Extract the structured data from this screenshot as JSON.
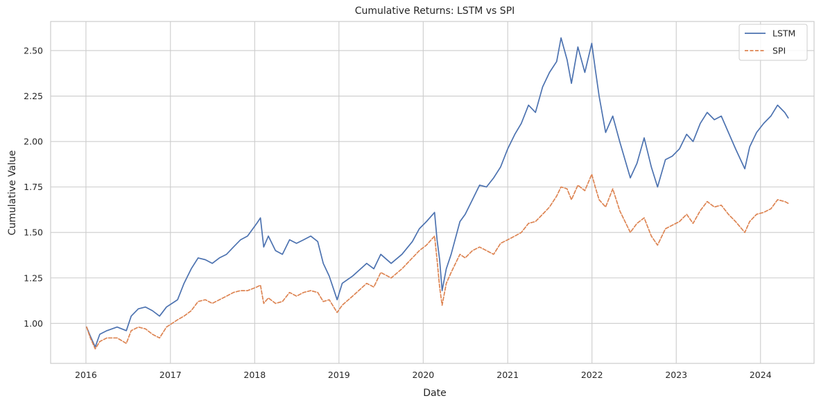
{
  "chart_data": {
    "type": "line",
    "title": "Cumulative Returns: LSTM vs SPI",
    "xlabel": "Date",
    "ylabel": "Cumulative Value",
    "x_ticks": [
      "2016",
      "2017",
      "2018",
      "2019",
      "2020",
      "2021",
      "2022",
      "2023",
      "2024"
    ],
    "y_ticks": [
      "1.00",
      "1.25",
      "1.50",
      "1.75",
      "2.00",
      "2.25",
      "2.50"
    ],
    "xlim": [
      "2015-08-01",
      "2024-08-20"
    ],
    "ylim": [
      0.78,
      2.66
    ],
    "grid": true,
    "legend_position": "top-right",
    "series": [
      {
        "name": "LSTM",
        "color": "#4c72b0",
        "style": "solid",
        "points": [
          [
            "2016-01-04",
            0.98
          ],
          [
            "2016-01-20",
            0.93
          ],
          [
            "2016-02-10",
            0.87
          ],
          [
            "2016-03-01",
            0.94
          ],
          [
            "2016-04-01",
            0.96
          ],
          [
            "2016-05-15",
            0.98
          ],
          [
            "2016-06-24",
            0.96
          ],
          [
            "2016-07-15",
            1.04
          ],
          [
            "2016-08-15",
            1.08
          ],
          [
            "2016-09-15",
            1.09
          ],
          [
            "2016-10-15",
            1.07
          ],
          [
            "2016-11-15",
            1.04
          ],
          [
            "2016-12-15",
            1.09
          ],
          [
            "2017-02-01",
            1.13
          ],
          [
            "2017-03-01",
            1.22
          ],
          [
            "2017-04-01",
            1.3
          ],
          [
            "2017-05-01",
            1.36
          ],
          [
            "2017-06-01",
            1.35
          ],
          [
            "2017-07-01",
            1.33
          ],
          [
            "2017-08-01",
            1.36
          ],
          [
            "2017-09-01",
            1.38
          ],
          [
            "2017-10-01",
            1.42
          ],
          [
            "2017-11-01",
            1.46
          ],
          [
            "2017-12-01",
            1.48
          ],
          [
            "2018-01-10",
            1.55
          ],
          [
            "2018-01-26",
            1.58
          ],
          [
            "2018-02-09",
            1.42
          ],
          [
            "2018-03-01",
            1.48
          ],
          [
            "2018-04-01",
            1.4
          ],
          [
            "2018-05-01",
            1.38
          ],
          [
            "2018-06-01",
            1.46
          ],
          [
            "2018-07-01",
            1.44
          ],
          [
            "2018-08-01",
            1.46
          ],
          [
            "2018-09-01",
            1.48
          ],
          [
            "2018-10-01",
            1.45
          ],
          [
            "2018-10-25",
            1.33
          ],
          [
            "2018-11-20",
            1.26
          ],
          [
            "2018-12-24",
            1.13
          ],
          [
            "2019-01-15",
            1.22
          ],
          [
            "2019-03-01",
            1.26
          ],
          [
            "2019-05-01",
            1.33
          ],
          [
            "2019-06-01",
            1.3
          ],
          [
            "2019-07-01",
            1.38
          ],
          [
            "2019-08-15",
            1.33
          ],
          [
            "2019-10-01",
            1.38
          ],
          [
            "2019-11-15",
            1.45
          ],
          [
            "2019-12-15",
            1.52
          ],
          [
            "2020-01-15",
            1.56
          ],
          [
            "2020-02-19",
            1.61
          ],
          [
            "2020-03-01",
            1.46
          ],
          [
            "2020-03-12",
            1.35
          ],
          [
            "2020-03-23",
            1.18
          ],
          [
            "2020-04-10",
            1.3
          ],
          [
            "2020-05-01",
            1.38
          ],
          [
            "2020-06-08",
            1.56
          ],
          [
            "2020-07-01",
            1.6
          ],
          [
            "2020-08-01",
            1.68
          ],
          [
            "2020-09-01",
            1.76
          ],
          [
            "2020-10-01",
            1.75
          ],
          [
            "2020-11-01",
            1.8
          ],
          [
            "2020-12-01",
            1.86
          ],
          [
            "2021-01-01",
            1.96
          ],
          [
            "2021-02-01",
            2.04
          ],
          [
            "2021-03-01",
            2.1
          ],
          [
            "2021-04-01",
            2.2
          ],
          [
            "2021-05-01",
            2.16
          ],
          [
            "2021-06-01",
            2.3
          ],
          [
            "2021-07-01",
            2.38
          ],
          [
            "2021-08-01",
            2.44
          ],
          [
            "2021-08-20",
            2.57
          ],
          [
            "2021-09-15",
            2.45
          ],
          [
            "2021-10-04",
            2.32
          ],
          [
            "2021-11-01",
            2.52
          ],
          [
            "2021-12-01",
            2.38
          ],
          [
            "2021-12-31",
            2.54
          ],
          [
            "2022-01-15",
            2.4
          ],
          [
            "2022-02-01",
            2.25
          ],
          [
            "2022-03-01",
            2.05
          ],
          [
            "2022-04-01",
            2.14
          ],
          [
            "2022-05-01",
            2.0
          ],
          [
            "2022-06-16",
            1.8
          ],
          [
            "2022-07-15",
            1.88
          ],
          [
            "2022-08-15",
            2.02
          ],
          [
            "2022-09-15",
            1.86
          ],
          [
            "2022-10-12",
            1.75
          ],
          [
            "2022-11-15",
            1.9
          ],
          [
            "2022-12-15",
            1.92
          ],
          [
            "2023-01-15",
            1.96
          ],
          [
            "2023-02-15",
            2.04
          ],
          [
            "2023-03-15",
            2.0
          ],
          [
            "2023-04-15",
            2.1
          ],
          [
            "2023-05-15",
            2.16
          ],
          [
            "2023-06-15",
            2.12
          ],
          [
            "2023-07-15",
            2.14
          ],
          [
            "2023-08-15",
            2.05
          ],
          [
            "2023-09-15",
            1.96
          ],
          [
            "2023-10-25",
            1.85
          ],
          [
            "2023-11-15",
            1.97
          ],
          [
            "2023-12-15",
            2.05
          ],
          [
            "2024-01-15",
            2.1
          ],
          [
            "2024-02-15",
            2.14
          ],
          [
            "2024-03-15",
            2.2
          ],
          [
            "2024-04-15",
            2.16
          ],
          [
            "2024-04-30",
            2.13
          ]
        ]
      },
      {
        "name": "SPI",
        "color": "#dd8452",
        "style": "dashed",
        "points": [
          [
            "2016-01-04",
            0.98
          ],
          [
            "2016-01-20",
            0.92
          ],
          [
            "2016-02-10",
            0.86
          ],
          [
            "2016-03-01",
            0.9
          ],
          [
            "2016-04-01",
            0.92
          ],
          [
            "2016-05-15",
            0.92
          ],
          [
            "2016-06-24",
            0.89
          ],
          [
            "2016-07-15",
            0.96
          ],
          [
            "2016-08-15",
            0.98
          ],
          [
            "2016-09-15",
            0.97
          ],
          [
            "2016-10-15",
            0.94
          ],
          [
            "2016-11-15",
            0.92
          ],
          [
            "2016-12-15",
            0.98
          ],
          [
            "2017-02-01",
            1.02
          ],
          [
            "2017-03-01",
            1.04
          ],
          [
            "2017-04-01",
            1.07
          ],
          [
            "2017-05-01",
            1.12
          ],
          [
            "2017-06-01",
            1.13
          ],
          [
            "2017-07-01",
            1.11
          ],
          [
            "2017-08-01",
            1.13
          ],
          [
            "2017-09-01",
            1.15
          ],
          [
            "2017-10-01",
            1.17
          ],
          [
            "2017-11-01",
            1.18
          ],
          [
            "2017-12-01",
            1.18
          ],
          [
            "2018-01-10",
            1.2
          ],
          [
            "2018-01-26",
            1.21
          ],
          [
            "2018-02-09",
            1.11
          ],
          [
            "2018-03-01",
            1.14
          ],
          [
            "2018-04-01",
            1.11
          ],
          [
            "2018-05-01",
            1.12
          ],
          [
            "2018-06-01",
            1.17
          ],
          [
            "2018-07-01",
            1.15
          ],
          [
            "2018-08-01",
            1.17
          ],
          [
            "2018-09-01",
            1.18
          ],
          [
            "2018-10-01",
            1.17
          ],
          [
            "2018-10-25",
            1.12
          ],
          [
            "2018-11-20",
            1.13
          ],
          [
            "2018-12-24",
            1.06
          ],
          [
            "2019-01-15",
            1.1
          ],
          [
            "2019-03-01",
            1.15
          ],
          [
            "2019-05-01",
            1.22
          ],
          [
            "2019-06-01",
            1.2
          ],
          [
            "2019-07-01",
            1.28
          ],
          [
            "2019-08-15",
            1.25
          ],
          [
            "2019-10-01",
            1.3
          ],
          [
            "2019-11-15",
            1.36
          ],
          [
            "2019-12-15",
            1.4
          ],
          [
            "2020-01-15",
            1.43
          ],
          [
            "2020-02-19",
            1.48
          ],
          [
            "2020-03-01",
            1.35
          ],
          [
            "2020-03-12",
            1.2
          ],
          [
            "2020-03-23",
            1.1
          ],
          [
            "2020-04-10",
            1.22
          ],
          [
            "2020-05-01",
            1.28
          ],
          [
            "2020-06-08",
            1.38
          ],
          [
            "2020-07-01",
            1.36
          ],
          [
            "2020-08-01",
            1.4
          ],
          [
            "2020-09-01",
            1.42
          ],
          [
            "2020-10-01",
            1.4
          ],
          [
            "2020-11-01",
            1.38
          ],
          [
            "2020-12-01",
            1.44
          ],
          [
            "2021-01-01",
            1.46
          ],
          [
            "2021-02-01",
            1.48
          ],
          [
            "2021-03-01",
            1.5
          ],
          [
            "2021-04-01",
            1.55
          ],
          [
            "2021-05-01",
            1.56
          ],
          [
            "2021-06-01",
            1.6
          ],
          [
            "2021-07-01",
            1.64
          ],
          [
            "2021-08-01",
            1.7
          ],
          [
            "2021-08-20",
            1.75
          ],
          [
            "2021-09-15",
            1.74
          ],
          [
            "2021-10-04",
            1.68
          ],
          [
            "2021-11-01",
            1.76
          ],
          [
            "2021-12-01",
            1.73
          ],
          [
            "2021-12-31",
            1.82
          ],
          [
            "2022-01-15",
            1.75
          ],
          [
            "2022-02-01",
            1.68
          ],
          [
            "2022-03-01",
            1.64
          ],
          [
            "2022-04-01",
            1.74
          ],
          [
            "2022-05-01",
            1.62
          ],
          [
            "2022-06-16",
            1.5
          ],
          [
            "2022-07-15",
            1.55
          ],
          [
            "2022-08-15",
            1.58
          ],
          [
            "2022-09-15",
            1.48
          ],
          [
            "2022-10-12",
            1.43
          ],
          [
            "2022-11-15",
            1.52
          ],
          [
            "2022-12-15",
            1.54
          ],
          [
            "2023-01-15",
            1.56
          ],
          [
            "2023-02-15",
            1.6
          ],
          [
            "2023-03-15",
            1.55
          ],
          [
            "2023-04-15",
            1.62
          ],
          [
            "2023-05-15",
            1.67
          ],
          [
            "2023-06-15",
            1.64
          ],
          [
            "2023-07-15",
            1.65
          ],
          [
            "2023-08-15",
            1.6
          ],
          [
            "2023-09-15",
            1.56
          ],
          [
            "2023-10-25",
            1.5
          ],
          [
            "2023-11-15",
            1.56
          ],
          [
            "2023-12-15",
            1.6
          ],
          [
            "2024-01-15",
            1.61
          ],
          [
            "2024-02-15",
            1.63
          ],
          [
            "2024-03-15",
            1.68
          ],
          [
            "2024-04-15",
            1.67
          ],
          [
            "2024-04-30",
            1.66
          ]
        ]
      }
    ]
  }
}
